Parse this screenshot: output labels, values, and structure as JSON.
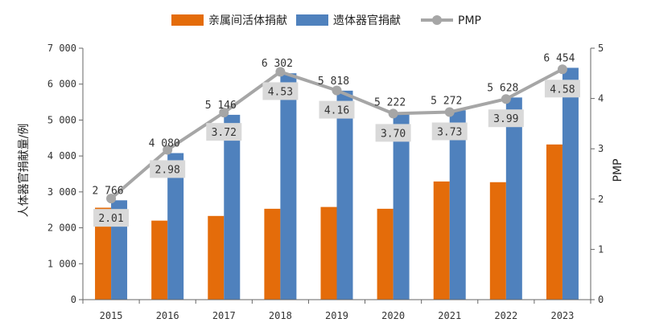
{
  "chart_data": {
    "type": "bar",
    "categories": [
      "2015",
      "2016",
      "2017",
      "2018",
      "2019",
      "2020",
      "2021",
      "2022",
      "2023"
    ],
    "series": [
      {
        "name": "亲属间活体捐献",
        "type": "bar",
        "axis": "left",
        "color": "#e46c0a",
        "values": [
          2560,
          2200,
          2330,
          2530,
          2580,
          2530,
          3290,
          3270,
          4320
        ]
      },
      {
        "name": "遗体器官捐献",
        "type": "bar",
        "axis": "left",
        "color": "#4f81bd",
        "values": [
          2766,
          4080,
          5146,
          6302,
          5818,
          5222,
          5272,
          5628,
          6454
        ],
        "labels": [
          "2 766",
          "4 080",
          "5 146",
          "6 302",
          "5 818",
          "5 222",
          "5 272",
          "5 628",
          "6 454"
        ]
      },
      {
        "name": "PMP",
        "type": "line",
        "axis": "right",
        "color": "#a6a6a6",
        "values": [
          2.01,
          2.98,
          3.72,
          4.53,
          4.16,
          3.7,
          3.73,
          3.99,
          4.58
        ],
        "labels": [
          "2.01",
          "2.98",
          "3.72",
          "4.53",
          "4.16",
          "3.70",
          "3.73",
          "3.99",
          "4.58"
        ]
      }
    ],
    "ylabel": "人体器官捐献量/例",
    "ylabel_right": "PMP",
    "ylim": [
      0,
      7000
    ],
    "ylim_right": [
      0,
      5
    ],
    "yticks": [
      0,
      1000,
      2000,
      3000,
      4000,
      5000,
      6000,
      7000
    ],
    "ytick_labels": [
      "0",
      "1 000",
      "2 000",
      "3 000",
      "4 000",
      "5 000",
      "6 000",
      "7 000"
    ],
    "yticks_right": [
      0,
      1,
      2,
      3,
      4,
      5
    ],
    "ytick_labels_right": [
      "0",
      "1",
      "2",
      "3",
      "4",
      "5"
    ],
    "legend_position": "top-center",
    "grid": false
  }
}
